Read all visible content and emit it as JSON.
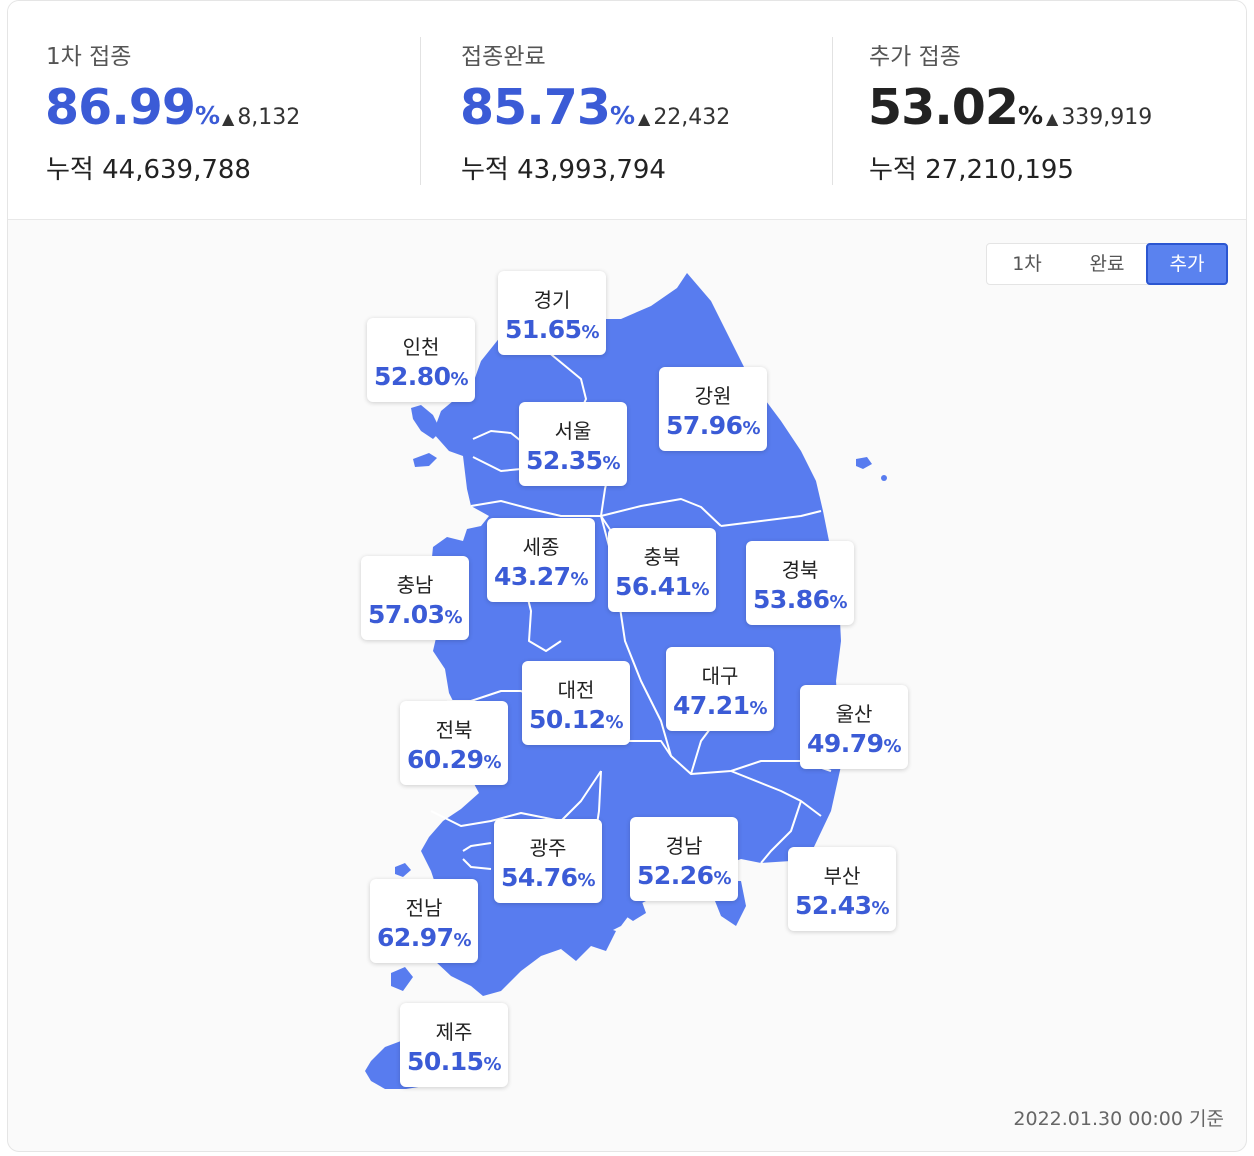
{
  "stats": [
    {
      "label": "1차 접종",
      "value": "86.99",
      "unit": "%",
      "delta": "8,132",
      "cum_label": "누적",
      "cum": "44,639,788",
      "color": "#3b5bd6"
    },
    {
      "label": "접종완료",
      "value": "85.73",
      "unit": "%",
      "delta": "22,432",
      "cum_label": "누적",
      "cum": "43,993,794",
      "color": "#3b5bd6"
    },
    {
      "label": "추가 접종",
      "value": "53.02",
      "unit": "%",
      "delta": "339,919",
      "cum_label": "누적",
      "cum": "27,210,195",
      "color": "#222222"
    }
  ],
  "delta_icon": "triangle-up-icon",
  "toggle": {
    "first": "1차",
    "complete": "완료",
    "booster": "추가",
    "selected": "추가"
  },
  "map": {
    "fill_color": "#587cef",
    "regions": [
      {
        "name": "경기",
        "value": "51.65"
      },
      {
        "name": "인천",
        "value": "52.80"
      },
      {
        "name": "서울",
        "value": "52.35"
      },
      {
        "name": "강원",
        "value": "57.96"
      },
      {
        "name": "세종",
        "value": "43.27"
      },
      {
        "name": "충북",
        "value": "56.41"
      },
      {
        "name": "경북",
        "value": "53.86"
      },
      {
        "name": "충남",
        "value": "57.03"
      },
      {
        "name": "대전",
        "value": "50.12"
      },
      {
        "name": "대구",
        "value": "47.21"
      },
      {
        "name": "울산",
        "value": "49.79"
      },
      {
        "name": "전북",
        "value": "60.29"
      },
      {
        "name": "광주",
        "value": "54.76"
      },
      {
        "name": "경남",
        "value": "52.26"
      },
      {
        "name": "부산",
        "value": "52.43"
      },
      {
        "name": "전남",
        "value": "62.97"
      },
      {
        "name": "제주",
        "value": "50.15"
      }
    ],
    "unit": "%"
  },
  "footer": "2022.01.30 00:00 기준"
}
